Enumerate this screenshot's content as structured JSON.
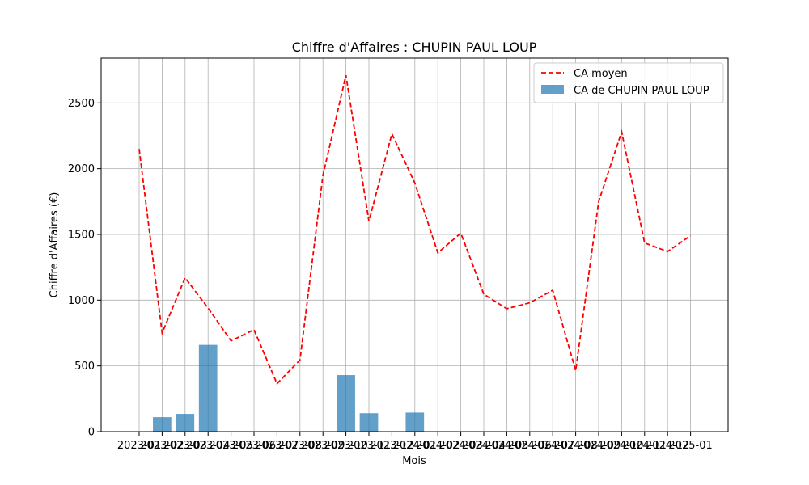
{
  "chart_data": {
    "type": "bar",
    "title": "Chiffre d'Affaires : CHUPIN PAUL LOUP",
    "xlabel": "Mois",
    "ylabel": "Chiffre d'Affaires (€)",
    "ylim": [
      0,
      2840
    ],
    "yticks": [
      0,
      500,
      1000,
      1500,
      2000,
      2500
    ],
    "grid": true,
    "legend_position": "top-right",
    "categories": [
      "2023-01",
      "2023-02",
      "2023-03",
      "2023-04",
      "2023-05",
      "2023-06",
      "2023-07",
      "2023-08",
      "2023-09",
      "2023-10",
      "2023-11",
      "2023-12",
      "2024-01",
      "2024-02",
      "2024-03",
      "2024-04",
      "2024-05",
      "2024-06",
      "2024-07",
      "2024-08",
      "2024-09",
      "2024-10",
      "2024-11",
      "2024-12",
      "2025-01"
    ],
    "series": [
      {
        "name": "CA moyen",
        "type": "line",
        "style": "dashed",
        "color": "#ff0000",
        "values": [
          2150,
          750,
          1170,
          940,
          690,
          775,
          365,
          545,
          1950,
          2710,
          1600,
          2265,
          1890,
          1360,
          1510,
          1045,
          935,
          980,
          1075,
          465,
          1750,
          2280,
          1435,
          1370,
          1490
        ]
      },
      {
        "name": "CA de CHUPIN PAUL LOUP",
        "type": "bar",
        "color": "#1f77b4",
        "values": [
          0,
          110,
          135,
          660,
          0,
          0,
          0,
          0,
          0,
          430,
          140,
          0,
          145,
          0,
          0,
          0,
          0,
          0,
          0,
          0,
          0,
          0,
          0,
          0,
          0
        ]
      }
    ]
  }
}
